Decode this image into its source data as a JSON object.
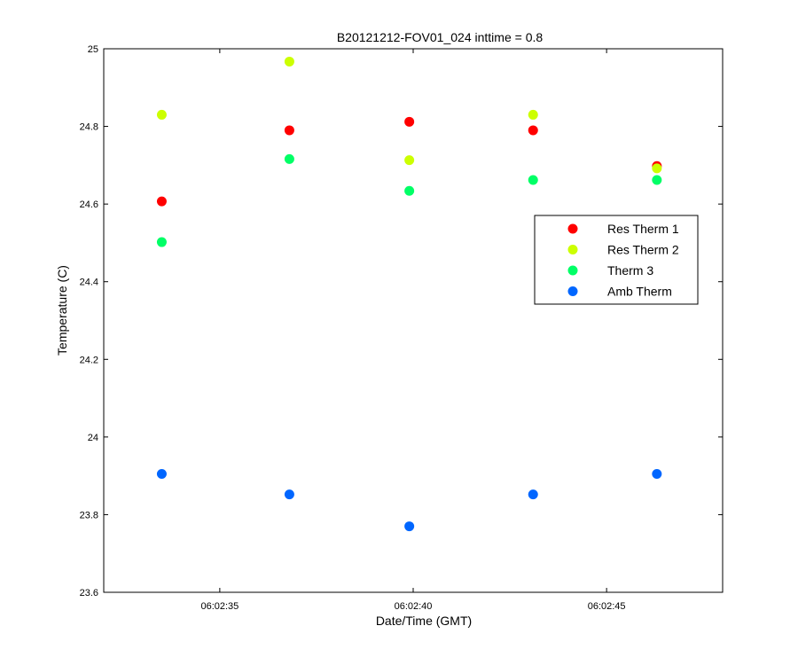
{
  "chart_data": {
    "type": "scatter",
    "title": "B20121212-FOV01_024 inttime = 0.8",
    "xlabel": "Date/Time (GMT)",
    "ylabel": "Temperature (C)",
    "x_unit": "time",
    "xlim": [
      "06:02:32",
      "06:02:48"
    ],
    "ylim": [
      23.6,
      25
    ],
    "x_ticks": [
      "06:02:35",
      "06:02:40",
      "06:02:45"
    ],
    "y_ticks": [
      "23.6",
      "23.8",
      "24",
      "24.2",
      "24.4",
      "24.6",
      "24.8",
      "25"
    ],
    "grid": false,
    "legend_position": "right",
    "x": [
      "06:02:33.5",
      "06:02:36.8",
      "06:02:39.9",
      "06:02:43.1",
      "06:02:46.3"
    ],
    "series": [
      {
        "name": "Res Therm 1",
        "color": "#ff0000",
        "values": [
          24.607,
          24.79,
          24.812,
          24.79,
          24.698
        ]
      },
      {
        "name": "Res Therm 2",
        "color": "#ccff00",
        "values": [
          24.83,
          24.967,
          24.713,
          24.83,
          24.692
        ]
      },
      {
        "name": "Therm 3",
        "color": "#00ff66",
        "values": [
          24.502,
          24.716,
          24.634,
          24.662,
          24.662
        ]
      },
      {
        "name": "Amb Therm",
        "color": "#0066ff",
        "values": [
          23.905,
          23.852,
          23.77,
          23.852,
          23.905
        ]
      }
    ]
  }
}
